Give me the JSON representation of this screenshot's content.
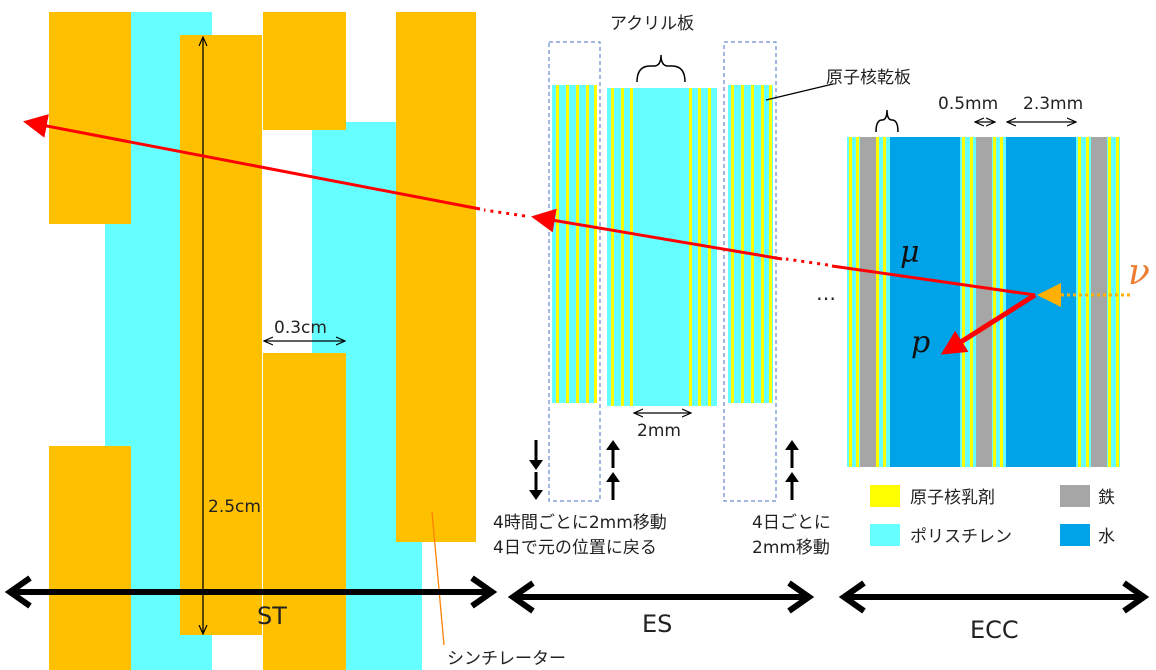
{
  "labels": {
    "acrylic": "アクリル板",
    "dry_plate": "原子核乾板",
    "thick_05": "0.5mm",
    "thick_23": "2.3mm",
    "gap_03": "0.3cm",
    "height_25": "2.5cm",
    "move_2mm": "2mm",
    "mu": "μ",
    "nu": "ν",
    "p": "p",
    "dots": "…",
    "scintillator": "シンチレーター",
    "shift_line1": "4時間ごとに2mm移動",
    "shift_line2": "4日で元の位置に戻る",
    "ecc_shift_line1": "4日ごとに",
    "ecc_shift_line2": "2mm移動"
  },
  "sections": {
    "st": "ST",
    "es": "ES",
    "ecc": "ECC"
  },
  "legend": [
    {
      "label": "原子核乳剤",
      "color": "#ffff00"
    },
    {
      "label": "鉄",
      "color": "#a6a6a6"
    },
    {
      "label": "ポリスチレン",
      "color": "#66ffff"
    },
    {
      "label": "水",
      "color": "#00a3e8"
    }
  ],
  "colors": {
    "scintillator": "#ffc000",
    "polystyrene": "#66ffff",
    "emulsion": "#ffff00",
    "iron": "#a6a6a6",
    "water": "#00a3e8",
    "track": "#ff0000",
    "neutrino": "#ffb000"
  }
}
